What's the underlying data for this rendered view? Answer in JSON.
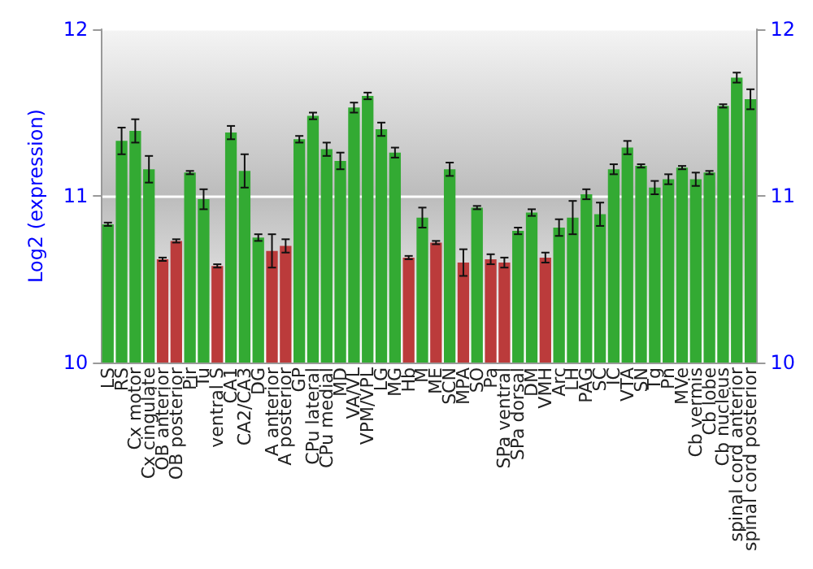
{
  "chart_data": {
    "type": "bar",
    "ylabel": "Log2 (expression)",
    "categories": [
      "LS",
      "RS",
      "Cx motor",
      "Cx cingulate",
      "OB anterior",
      "OB posterior",
      "Pir",
      "Tu",
      "ventral S",
      "CA1",
      "CA2/CA3",
      "DG",
      "A anterior",
      "A posterior",
      "GP",
      "CPu lateral",
      "CPu medial",
      "MD",
      "VA/VL",
      "VPM/VPL",
      "LG",
      "MG",
      "Hb",
      "M",
      "ME",
      "SCN",
      "MPA",
      "SO",
      "Pa",
      "SPa ventral",
      "SPa dorsal",
      "DM",
      "VMH",
      "Arc",
      "LH",
      "PAG",
      "SC",
      "IC",
      "VTA",
      "SN",
      "Tg",
      "Pn",
      "MVe",
      "Cb vermis",
      "Cb lobe",
      "Cb nucleus",
      "spinal cord anterior",
      "spinal cord posterior"
    ],
    "values": [
      10.83,
      11.33,
      11.39,
      11.16,
      10.62,
      10.73,
      11.14,
      10.98,
      10.58,
      11.38,
      11.15,
      10.75,
      10.67,
      10.7,
      11.34,
      11.48,
      11.28,
      11.21,
      11.53,
      11.6,
      11.4,
      11.26,
      10.63,
      10.87,
      10.72,
      11.16,
      10.6,
      10.93,
      10.62,
      10.6,
      10.79,
      10.9,
      10.63,
      10.81,
      10.87,
      11.01,
      10.89,
      11.16,
      11.29,
      11.18,
      11.05,
      11.1,
      11.17,
      11.1,
      11.14,
      11.54,
      11.71,
      11.58
    ],
    "errors": [
      0.01,
      0.08,
      0.07,
      0.08,
      0.01,
      0.01,
      0.01,
      0.06,
      0.01,
      0.04,
      0.1,
      0.02,
      0.1,
      0.04,
      0.02,
      0.02,
      0.04,
      0.05,
      0.03,
      0.02,
      0.04,
      0.03,
      0.01,
      0.06,
      0.01,
      0.04,
      0.08,
      0.01,
      0.03,
      0.03,
      0.02,
      0.02,
      0.03,
      0.05,
      0.1,
      0.03,
      0.07,
      0.03,
      0.04,
      0.01,
      0.04,
      0.03,
      0.01,
      0.04,
      0.01,
      0.01,
      0.03,
      0.06
    ],
    "colors": [
      "#33aa33",
      "#33aa33",
      "#33aa33",
      "#33aa33",
      "#bb3b3b",
      "#bb3b3b",
      "#33aa33",
      "#33aa33",
      "#bb3b3b",
      "#33aa33",
      "#33aa33",
      "#33aa33",
      "#bb3b3b",
      "#bb3b3b",
      "#33aa33",
      "#33aa33",
      "#33aa33",
      "#33aa33",
      "#33aa33",
      "#33aa33",
      "#33aa33",
      "#33aa33",
      "#bb3b3b",
      "#33aa33",
      "#bb3b3b",
      "#33aa33",
      "#bb3b3b",
      "#33aa33",
      "#bb3b3b",
      "#bb3b3b",
      "#33aa33",
      "#33aa33",
      "#bb3b3b",
      "#33aa33",
      "#33aa33",
      "#33aa33",
      "#33aa33",
      "#33aa33",
      "#33aa33",
      "#33aa33",
      "#33aa33",
      "#33aa33",
      "#33aa33",
      "#33aa33",
      "#33aa33",
      "#33aa33",
      "#33aa33",
      "#33aa33"
    ],
    "ylim": [
      10,
      12
    ],
    "yticks": [
      10,
      11,
      12
    ],
    "y2lim": [
      10,
      12
    ],
    "y2ticks": [
      10,
      11,
      12
    ],
    "grid": "y"
  }
}
